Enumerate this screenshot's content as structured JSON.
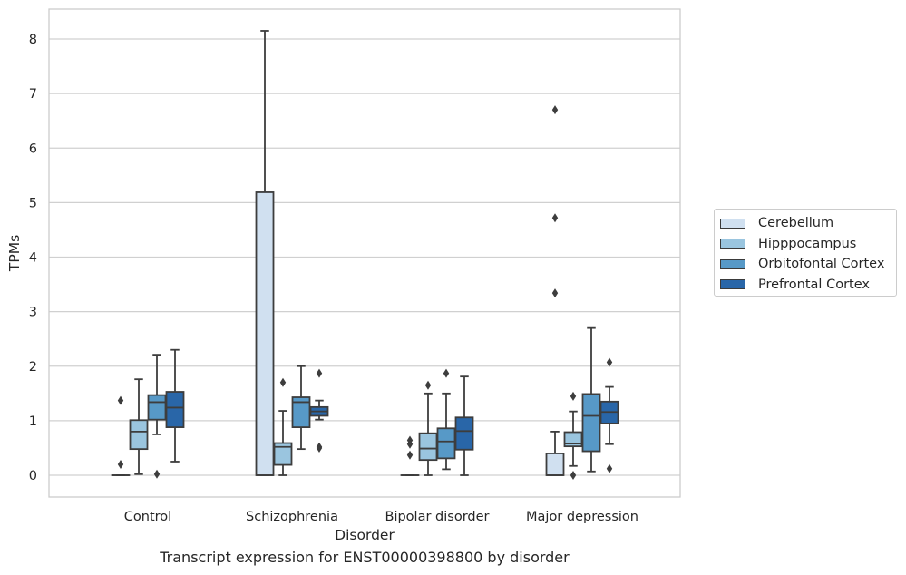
{
  "caption": "Transcript expression for ENST00000398800 by disorder",
  "chart_data": {
    "type": "box",
    "xlabel": "Disorder",
    "ylabel": "TPMs",
    "categories": [
      "Control",
      "Schizophrenia",
      "Bipolar disorder",
      "Major depression"
    ],
    "y_ticks": [
      "0",
      "1",
      "2",
      "3",
      "4",
      "5",
      "6",
      "7",
      "8"
    ],
    "ylim": [
      -0.4,
      8.57
    ],
    "grid": "horizontal",
    "legend_position": "right",
    "series": [
      {
        "name": "Cerebellum",
        "color": "#d0e0f0",
        "boxes": [
          {
            "q1": 0.0,
            "median": 0.0,
            "q3": 0.0,
            "whisker_low": 0.0,
            "whisker_high": 0.0,
            "outliers": [
              1.37,
              0.2
            ]
          },
          {
            "q1": 0.0,
            "median": 0.0,
            "q3": 5.19,
            "whisker_low": 0.0,
            "whisker_high": 8.15,
            "outliers": []
          },
          {
            "q1": 0.0,
            "median": 0.0,
            "q3": 0.0,
            "whisker_low": 0.0,
            "whisker_high": 0.0,
            "outliers": [
              0.64,
              0.57,
              0.37
            ]
          },
          {
            "q1": 0.0,
            "median": 0.0,
            "q3": 0.4,
            "whisker_low": 0.0,
            "whisker_high": 0.8,
            "outliers": [
              6.7,
              4.72,
              3.34
            ]
          }
        ]
      },
      {
        "name": "Hipppocampus",
        "color": "#9ac5df",
        "boxes": [
          {
            "q1": 0.48,
            "median": 0.8,
            "q3": 1.01,
            "whisker_low": 0.02,
            "whisker_high": 1.76,
            "outliers": []
          },
          {
            "q1": 0.19,
            "median": 0.52,
            "q3": 0.59,
            "whisker_low": 0.0,
            "whisker_high": 1.18,
            "outliers": [
              1.7
            ]
          },
          {
            "q1": 0.28,
            "median": 0.49,
            "q3": 0.77,
            "whisker_low": 0.0,
            "whisker_high": 1.5,
            "outliers": [
              1.65
            ]
          },
          {
            "q1": 0.53,
            "median": 0.58,
            "q3": 0.79,
            "whisker_low": 0.17,
            "whisker_high": 1.17,
            "outliers": [
              1.45,
              0.0
            ]
          }
        ]
      },
      {
        "name": "Orbitofontal Cortex",
        "color": "#5799c7",
        "boxes": [
          {
            "q1": 1.02,
            "median": 1.34,
            "q3": 1.47,
            "whisker_low": 0.75,
            "whisker_high": 2.21,
            "outliers": [
              0.02
            ]
          },
          {
            "q1": 0.88,
            "median": 1.34,
            "q3": 1.43,
            "whisker_low": 0.48,
            "whisker_high": 2.0,
            "outliers": []
          },
          {
            "q1": 0.31,
            "median": 0.62,
            "q3": 0.86,
            "whisker_low": 0.11,
            "whisker_high": 1.5,
            "outliers": [
              1.87
            ]
          },
          {
            "q1": 0.44,
            "median": 1.09,
            "q3": 1.49,
            "whisker_low": 0.07,
            "whisker_high": 2.7,
            "outliers": []
          }
        ]
      },
      {
        "name": "Prefrontal Cortex",
        "color": "#2966a8",
        "boxes": [
          {
            "q1": 0.88,
            "median": 1.24,
            "q3": 1.53,
            "whisker_low": 0.25,
            "whisker_high": 2.3,
            "outliers": []
          },
          {
            "q1": 1.09,
            "median": 1.17,
            "q3": 1.25,
            "whisker_low": 1.02,
            "whisker_high": 1.37,
            "outliers": [
              1.87,
              0.52,
              0.5
            ]
          },
          {
            "q1": 0.47,
            "median": 0.81,
            "q3": 1.06,
            "whisker_low": 0.0,
            "whisker_high": 1.81,
            "outliers": []
          },
          {
            "q1": 0.95,
            "median": 1.16,
            "q3": 1.35,
            "whisker_low": 0.57,
            "whisker_high": 1.62,
            "outliers": [
              2.07,
              0.12
            ]
          }
        ]
      }
    ]
  }
}
